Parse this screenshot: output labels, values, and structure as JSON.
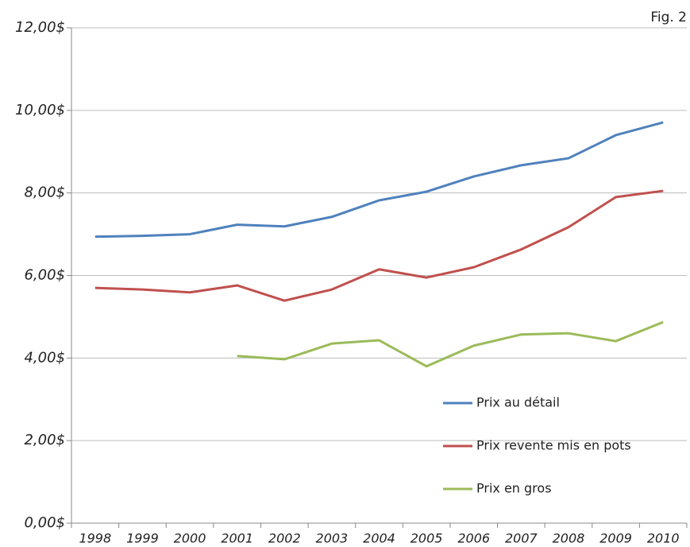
{
  "chart_data": {
    "type": "line",
    "annotation": "Fig. 2",
    "categories": [
      "1998",
      "1999",
      "2000",
      "2001",
      "2002",
      "2003",
      "2004",
      "2005",
      "2006",
      "2007",
      "2008",
      "2009",
      "2010"
    ],
    "series": [
      {
        "name": "Prix au détail",
        "color": "#4f81bd",
        "values": [
          6.94,
          6.96,
          7.0,
          7.23,
          7.19,
          7.42,
          7.82,
          8.03,
          8.4,
          8.67,
          8.84,
          9.4,
          9.71
        ]
      },
      {
        "name": "Prix revente mis en pots",
        "color": "#c0504d",
        "values": [
          5.7,
          5.66,
          5.59,
          5.76,
          5.39,
          5.66,
          6.15,
          5.95,
          6.2,
          6.63,
          7.17,
          7.9,
          8.05
        ]
      },
      {
        "name": "Prix en gros",
        "color": "#9bbb59",
        "values": [
          null,
          null,
          null,
          4.05,
          3.97,
          4.35,
          4.43,
          3.8,
          4.3,
          4.57,
          4.6,
          4.41,
          4.87
        ]
      }
    ],
    "ylim": [
      0,
      12
    ],
    "yticks": [
      {
        "value": 0,
        "label": "0,00$"
      },
      {
        "value": 2,
        "label": "2,00$"
      },
      {
        "value": 4,
        "label": "4,00$"
      },
      {
        "value": 6,
        "label": "6,00$"
      },
      {
        "value": 8,
        "label": "8,00$"
      },
      {
        "value": 10,
        "label": "10,00$"
      },
      {
        "value": 12,
        "label": "12,00$"
      }
    ],
    "grid": true,
    "legend": "lower right"
  }
}
